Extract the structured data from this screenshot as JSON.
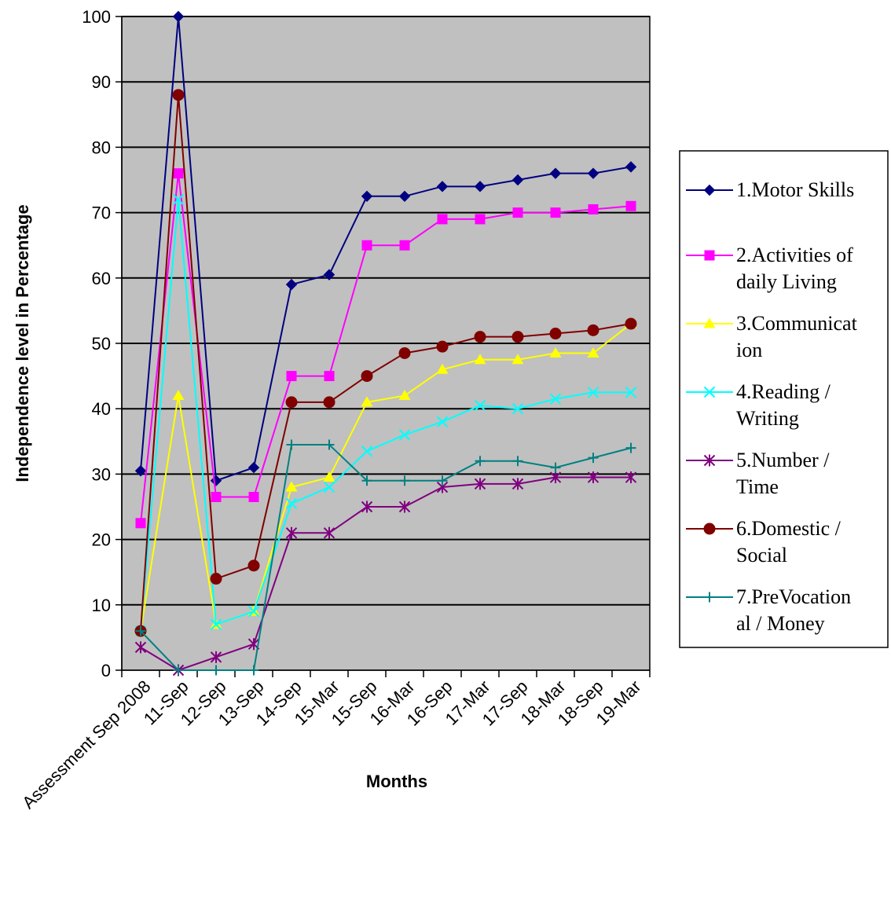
{
  "chart_data": {
    "type": "line",
    "title": "",
    "xlabel": "Months",
    "ylabel": "Independence level in Percentage",
    "ylim": [
      0,
      100
    ],
    "yticks": [
      0,
      10,
      20,
      30,
      40,
      50,
      60,
      70,
      80,
      90,
      100
    ],
    "grid": true,
    "legend_position": "right",
    "plot_background": "#c0c0c0",
    "categories": [
      "Assessment Sep 2008",
      "11-Sep",
      "12-Sep",
      "13-Sep",
      "14-Sep",
      "15-Mar",
      "15-Sep",
      "16-Mar",
      "16-Sep",
      "17-Mar",
      "17-Sep",
      "18-Mar",
      "18-Sep",
      "19-Mar"
    ],
    "series": [
      {
        "name": "1.Motor Skills",
        "legend_lines": [
          "1.Motor Skills"
        ],
        "color": "#000080",
        "marker": "diamond",
        "values": [
          30.5,
          100,
          29,
          31,
          59,
          60.5,
          72.5,
          72.5,
          74,
          74,
          75,
          76,
          76,
          77
        ]
      },
      {
        "name": "2.Activities of daily Living",
        "legend_lines": [
          "2.Activities of",
          "daily   Living"
        ],
        "color": "#ff00ff",
        "marker": "square",
        "values": [
          22.5,
          76,
          26.5,
          26.5,
          45,
          45,
          65,
          65,
          69,
          69,
          70,
          70,
          70.5,
          71
        ]
      },
      {
        "name": "3.Communication",
        "legend_lines": [
          "3.Communicat",
          "ion"
        ],
        "color": "#ffff00",
        "marker": "triangle",
        "values": [
          6,
          42,
          7,
          9,
          28,
          29.5,
          41,
          42,
          46,
          47.5,
          47.5,
          48.5,
          48.5,
          53
        ]
      },
      {
        "name": "4.Reading / Writing",
        "legend_lines": [
          "4.Reading /",
          "Writing"
        ],
        "color": "#00ffff",
        "marker": "x",
        "values": [
          6,
          72,
          7,
          9,
          25.5,
          28,
          33.5,
          36,
          38,
          40.5,
          40,
          41.5,
          42.5,
          42.5
        ]
      },
      {
        "name": "5.Number / Time",
        "legend_lines": [
          "5.Number /",
          "Time"
        ],
        "color": "#800080",
        "marker": "star",
        "values": [
          3.5,
          0,
          2,
          4,
          21,
          21,
          25,
          25,
          28,
          28.5,
          28.5,
          29.5,
          29.5,
          29.5
        ]
      },
      {
        "name": "6.Domestic / Social",
        "legend_lines": [
          "6.Domestic /",
          "Social"
        ],
        "color": "#800000",
        "marker": "circle",
        "values": [
          6,
          88,
          14,
          16,
          41,
          41,
          45,
          48.5,
          49.5,
          51,
          51,
          51.5,
          52,
          53
        ]
      },
      {
        "name": "7.PreVocational / Money",
        "legend_lines": [
          "7.PreVocation",
          "al / Money"
        ],
        "color": "#008080",
        "marker": "plus",
        "values": [
          6,
          0,
          0,
          0,
          34.5,
          34.5,
          29,
          29,
          29,
          32,
          32,
          31,
          32.5,
          34
        ]
      }
    ]
  }
}
